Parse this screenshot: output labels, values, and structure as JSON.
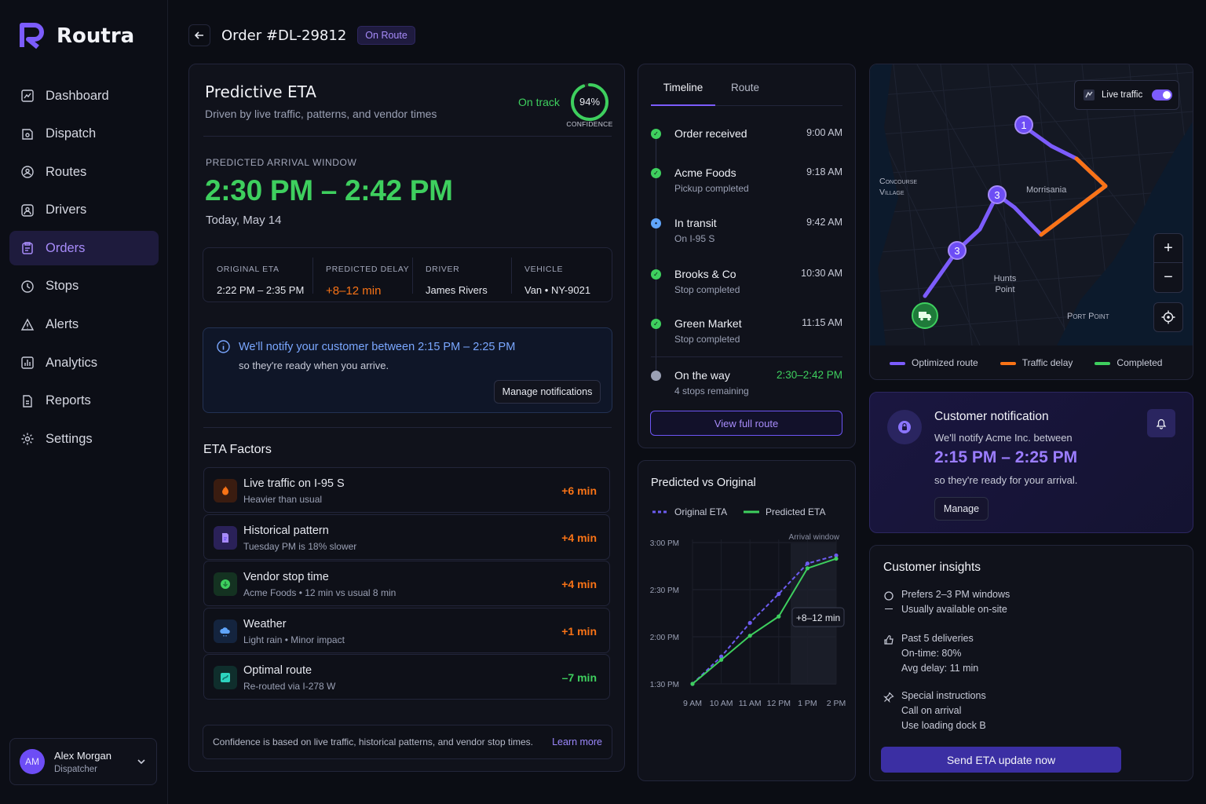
{
  "app": {
    "name": "Routra"
  },
  "sidebar": {
    "items": [
      {
        "label": "Dashboard",
        "icon": "dashboard-icon"
      },
      {
        "label": "Dispatch",
        "icon": "dispatch-icon"
      },
      {
        "label": "Routes",
        "icon": "routes-icon"
      },
      {
        "label": "Drivers",
        "icon": "drivers-icon"
      },
      {
        "label": "Orders",
        "icon": "orders-icon",
        "active": true
      },
      {
        "label": "Stops",
        "icon": "stops-icon"
      },
      {
        "label": "Alerts",
        "icon": "alerts-icon"
      },
      {
        "label": "Analytics",
        "icon": "analytics-icon"
      },
      {
        "label": "Reports",
        "icon": "reports-icon"
      },
      {
        "label": "Settings",
        "icon": "settings-icon"
      }
    ],
    "user": {
      "initials": "AM",
      "name": "Alex Morgan",
      "role": "Dispatcher"
    }
  },
  "header": {
    "title": "Order #DL-29812",
    "status": "On Route"
  },
  "eta": {
    "title": "Predictive ETA",
    "subtitle": "Driven by live traffic, patterns, and vendor times",
    "status": "On track",
    "confidence_value": "94%",
    "confidence_fraction": 0.94,
    "confidence_label": "CONFIDENCE",
    "window_label": "PREDICTED ARRIVAL WINDOW",
    "window": "2:30 PM – 2:42 PM",
    "date": "Today, May 14",
    "stats": [
      {
        "label": "ORIGINAL ETA",
        "value": "2:22 PM – 2:35 PM"
      },
      {
        "label": "PREDICTED DELAY",
        "value": "+8–12 min"
      },
      {
        "label": "DRIVER",
        "value": "James Rivers"
      },
      {
        "label": "VEHICLE",
        "value": "Van • NY-9021"
      }
    ],
    "notify_text": "We'll notify your customer between 2:15 PM – 2:25 PM",
    "notify_sub": "so they're ready when you arrive.",
    "notify_button": "Manage notifications",
    "factors_title": "ETA Factors",
    "factors": [
      {
        "title": "Live traffic on I-95 S",
        "sub": "Heavier than usual",
        "value": "+6 min",
        "icon": "fire-icon",
        "color": "#f97316"
      },
      {
        "title": "Historical pattern",
        "sub": "Tuesday PM is 18% slower",
        "value": "+4 min",
        "icon": "document-icon",
        "color": "#a78bfa"
      },
      {
        "title": "Vendor stop time",
        "sub": "Acme Foods • 12 min vs usual 8 min",
        "value": "+4 min",
        "icon": "download-icon",
        "color": "#3ecf5e"
      },
      {
        "title": "Weather",
        "sub": "Light rain • Minor impact",
        "value": "+1 min",
        "icon": "cloud-icon",
        "color": "#60a5fa"
      },
      {
        "title": "Optimal route",
        "sub": "Re-routed via I-278 W",
        "value": "–7 min",
        "icon": "route-icon",
        "color": "#2dd4bf"
      }
    ],
    "footer_text": "Confidence is based on live traffic, historical patterns, and vendor stop times.",
    "footer_link": "Learn more"
  },
  "timeline": {
    "tabs": [
      "Timeline",
      "Route"
    ],
    "items": [
      {
        "title": "Order received",
        "sub": "",
        "time": "9:00 AM",
        "state": "done"
      },
      {
        "title": "Acme Foods",
        "sub": "Pickup completed",
        "time": "9:18 AM",
        "state": "done"
      },
      {
        "title": "In transit",
        "sub": "On I-95 S",
        "time": "9:42 AM",
        "state": "current"
      },
      {
        "title": "Brooks & Co",
        "sub": "Stop completed",
        "time": "10:30 AM",
        "state": "done"
      },
      {
        "title": "Green Market",
        "sub": "Stop completed",
        "time": "11:15 AM",
        "state": "done"
      },
      {
        "title": "On the way",
        "sub": "4 stops remaining",
        "time": "2:30–2:42 PM",
        "state": "pending"
      }
    ],
    "button": "View full route"
  },
  "chart_data": {
    "type": "line",
    "title": "Predicted vs Original",
    "x": [
      "9 AM",
      "10 AM",
      "11 AM",
      "12 PM",
      "1 PM",
      "2 PM"
    ],
    "yticks": [
      "3:00 PM",
      "2:30 PM",
      "2:00 PM",
      "1:30 PM"
    ],
    "ylim": [
      0,
      90
    ],
    "series": [
      {
        "name": "Original ETA",
        "color": "#6d5cf0",
        "style": "dashed",
        "values": [
          0,
          17,
          38,
          56,
          75,
          80
        ]
      },
      {
        "name": "Predicted ETA",
        "color": "#3ecf5e",
        "style": "solid",
        "values": [
          0,
          15,
          30,
          42,
          72,
          78
        ]
      }
    ],
    "annotation": "+8–12 min",
    "band_label": "Arrival window",
    "legend_position": "top-left",
    "grid": true
  },
  "map": {
    "live_traffic_label": "Live traffic",
    "live_traffic_on": true,
    "places": [
      "Concourse Village",
      "Morrisania",
      "Hunts Point",
      "Port Point"
    ],
    "markers": [
      "1",
      "3",
      "3"
    ],
    "legend": [
      {
        "label": "Optimized route",
        "color": "#7c5cfc"
      },
      {
        "label": "Traffic delay",
        "color": "#f97316"
      },
      {
        "label": "Completed",
        "color": "#3ecf5e"
      }
    ],
    "zoom_in": "+",
    "zoom_out": "−"
  },
  "customer_notification": {
    "title": "Customer notification",
    "line1": "We'll notify Acme Inc. between",
    "window": "2:15 PM – 2:25 PM",
    "line2": "so they're ready for your arrival.",
    "button": "Manage"
  },
  "insights": {
    "title": "Customer insights",
    "groups": [
      {
        "icon": "circle-icon",
        "lines": [
          "Prefers 2–3 PM windows",
          "Usually available on-site"
        ]
      },
      {
        "icon": "thumbs-up-icon",
        "lines": [
          "Past 5 deliveries",
          "On-time: 80%",
          "Avg delay: 11 min"
        ]
      },
      {
        "icon": "pin-icon",
        "lines": [
          "Special instructions",
          "Call on arrival",
          "Use loading dock B"
        ]
      }
    ],
    "button": "Send ETA update now"
  }
}
